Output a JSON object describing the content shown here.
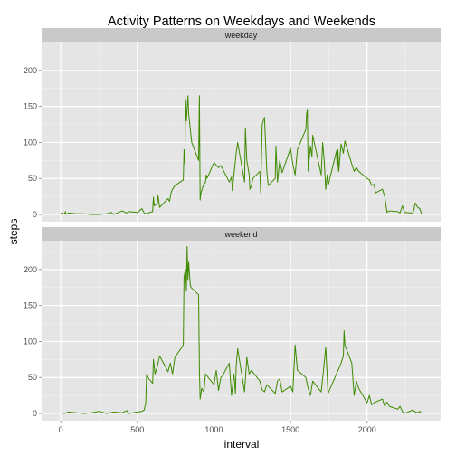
{
  "chart_data": {
    "type": "line",
    "title": "Activity Patterns on Weekdays and Weekends",
    "xlabel": "interval",
    "ylabel": "steps",
    "xlim": [
      -125,
      2480
    ],
    "ylim": [
      -10,
      240
    ],
    "x_ticks": [
      0,
      500,
      1000,
      1500,
      2000
    ],
    "x_tick_labels": [
      "0",
      "500",
      "1000",
      "1500",
      "2000"
    ],
    "y_ticks": [
      0,
      50,
      100,
      150,
      200
    ],
    "y_tick_labels": [
      "0",
      "50",
      "100",
      "150",
      "200"
    ],
    "grid": true,
    "line_color": "#3d8b00",
    "panel_background": "#e5e5e5",
    "strip_background": "#c9c9c9",
    "panels": [
      {
        "name": "weekday",
        "x": [
          0,
          25,
          30,
          35,
          50,
          100,
          150,
          200,
          250,
          300,
          330,
          345,
          400,
          430,
          445,
          500,
          530,
          545,
          555,
          600,
          605,
          610,
          630,
          635,
          645,
          700,
          710,
          720,
          730,
          745,
          800,
          805,
          810,
          815,
          820,
          830,
          835,
          845,
          855,
          900,
          905,
          910,
          915,
          930,
          945,
          950,
          955,
          1000,
          1030,
          1045,
          1100,
          1115,
          1120,
          1130,
          1145,
          1155,
          1200,
          1205,
          1215,
          1230,
          1235,
          1245,
          1255,
          1300,
          1305,
          1315,
          1330,
          1345,
          1355,
          1400,
          1405,
          1415,
          1430,
          1445,
          1500,
          1515,
          1530,
          1545,
          1600,
          1605,
          1610,
          1615,
          1630,
          1640,
          1645,
          1700,
          1710,
          1720,
          1730,
          1740,
          1745,
          1800,
          1805,
          1810,
          1815,
          1830,
          1845,
          1855,
          1900,
          1915,
          1930,
          1945,
          2000,
          2015,
          2030,
          2045,
          2055,
          2100,
          2115,
          2130,
          2145,
          2200,
          2215,
          2230,
          2245,
          2300,
          2315,
          2330,
          2345,
          2355
        ],
        "y": [
          2,
          1,
          4,
          0,
          2,
          1,
          1,
          0,
          0,
          1,
          3,
          0,
          5,
          2,
          4,
          3,
          8,
          2,
          1,
          4,
          24,
          12,
          15,
          26,
          10,
          22,
          18,
          30,
          35,
          40,
          48,
          90,
          70,
          160,
          130,
          165,
          140,
          120,
          100,
          75,
          165,
          20,
          30,
          40,
          45,
          55,
          50,
          72,
          65,
          68,
          45,
          52,
          33,
          55,
          85,
          100,
          45,
          120,
          75,
          55,
          35,
          40,
          50,
          60,
          30,
          125,
          135,
          60,
          40,
          50,
          95,
          45,
          75,
          58,
          92,
          70,
          55,
          90,
          118,
          140,
          145,
          60,
          95,
          80,
          110,
          55,
          100,
          75,
          35,
          55,
          40,
          88,
          60,
          90,
          60,
          98,
          85,
          102,
          70,
          60,
          65,
          60,
          50,
          48,
          40,
          42,
          30,
          35,
          25,
          3,
          5,
          4,
          2,
          12,
          3,
          2,
          16,
          10,
          8,
          1
        ]
      },
      {
        "name": "weekend",
        "x": [
          0,
          25,
          50,
          100,
          150,
          200,
          250,
          300,
          345,
          400,
          430,
          445,
          500,
          530,
          545,
          555,
          560,
          575,
          600,
          605,
          615,
          630,
          645,
          700,
          715,
          730,
          745,
          800,
          805,
          815,
          820,
          825,
          830,
          835,
          845,
          850,
          900,
          905,
          910,
          920,
          935,
          945,
          1000,
          1015,
          1030,
          1045,
          1055,
          1100,
          1115,
          1130,
          1140,
          1145,
          1155,
          1200,
          1215,
          1230,
          1245,
          1300,
          1315,
          1330,
          1345,
          1400,
          1415,
          1430,
          1445,
          1500,
          1515,
          1530,
          1545,
          1600,
          1615,
          1630,
          1645,
          1700,
          1715,
          1730,
          1745,
          1800,
          1815,
          1830,
          1845,
          1850,
          1855,
          1900,
          1915,
          1930,
          1945,
          2000,
          2015,
          2030,
          2045,
          2100,
          2115,
          2130,
          2145,
          2200,
          2215,
          2230,
          2245,
          2300,
          2315,
          2330,
          2345,
          2355
        ],
        "y": [
          1,
          0,
          2,
          1,
          0,
          1,
          3,
          0,
          2,
          1,
          4,
          0,
          2,
          3,
          5,
          15,
          55,
          48,
          42,
          75,
          55,
          65,
          80,
          58,
          70,
          55,
          78,
          95,
          190,
          200,
          170,
          232,
          185,
          210,
          180,
          175,
          165,
          60,
          20,
          35,
          30,
          55,
          40,
          60,
          32,
          50,
          52,
          70,
          25,
          55,
          28,
          65,
          90,
          30,
          78,
          55,
          60,
          45,
          33,
          30,
          40,
          28,
          45,
          48,
          30,
          38,
          30,
          95,
          60,
          50,
          35,
          25,
          45,
          30,
          60,
          92,
          28,
          55,
          62,
          70,
          80,
          115,
          95,
          70,
          25,
          45,
          35,
          15,
          25,
          12,
          15,
          20,
          10,
          16,
          10,
          6,
          10,
          3,
          0,
          5,
          2,
          1,
          3,
          0
        ]
      }
    ]
  }
}
